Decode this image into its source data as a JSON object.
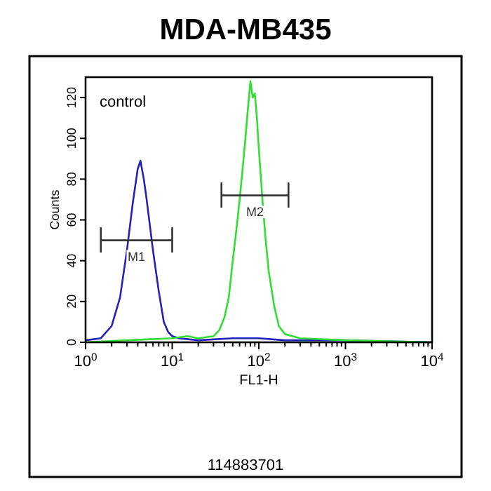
{
  "chart_data": {
    "type": "line",
    "title": "MDA-MB435",
    "xlabel": "FL1-H",
    "ylabel": "Counts",
    "log": "x",
    "grid": false,
    "marker": "none",
    "line_style": "solid",
    "xlim": [
      1,
      10000
    ],
    "ylim": [
      0,
      130
    ],
    "xticks": [
      {
        "value": 1,
        "label": "10$^{0}$"
      },
      {
        "value": 2,
        "label": null
      },
      {
        "value": 3,
        "label": null
      },
      {
        "value": 4,
        "label": null
      },
      {
        "value": 5,
        "label": null
      },
      {
        "value": 6,
        "label": null
      },
      {
        "value": 7,
        "label": null
      },
      {
        "value": 8,
        "label": null
      },
      {
        "value": 9,
        "label": null
      },
      {
        "value": 10,
        "label": "10$^{1}$"
      },
      {
        "value": 20,
        "label": null
      },
      {
        "value": 30,
        "label": null
      },
      {
        "value": 40,
        "label": null
      },
      {
        "value": 50,
        "label": null
      },
      {
        "value": 60,
        "label": null
      },
      {
        "value": 70,
        "label": null
      },
      {
        "value": 80,
        "label": null
      },
      {
        "value": 90,
        "label": null
      },
      {
        "value": 100,
        "label": "10$^{2}$"
      },
      {
        "value": 200,
        "label": null
      },
      {
        "value": 300,
        "label": null
      },
      {
        "value": 400,
        "label": null
      },
      {
        "value": 500,
        "label": null
      },
      {
        "value": 600,
        "label": null
      },
      {
        "value": 700,
        "label": null
      },
      {
        "value": 800,
        "label": null
      },
      {
        "value": 900,
        "label": null
      },
      {
        "value": 1000,
        "label": "10$^{3}$"
      },
      {
        "value": 2000,
        "label": null
      },
      {
        "value": 3000,
        "label": null
      },
      {
        "value": 4000,
        "label": null
      },
      {
        "value": 5000,
        "label": null
      },
      {
        "value": 6000,
        "label": null
      },
      {
        "value": 7000,
        "label": null
      },
      {
        "value": 8000,
        "label": null
      },
      {
        "value": 9000,
        "label": null
      },
      {
        "value": 10000,
        "label": "10$^{4}$"
      }
    ],
    "yticks": [
      0,
      20,
      40,
      60,
      80,
      100,
      120
    ],
    "series": [
      {
        "color": "#2222bb",
        "x": [
          1,
          1.5,
          2,
          2.5,
          3,
          3.5,
          4,
          4.3,
          4.7,
          5,
          5.5,
          6,
          7,
          8,
          9,
          10,
          12,
          20,
          50,
          100,
          200,
          500,
          1000,
          10000
        ],
        "values": [
          1,
          2,
          8,
          22,
          45,
          68,
          85,
          89,
          80,
          72,
          58,
          45,
          25,
          10,
          5,
          3,
          2,
          1,
          2,
          2,
          1,
          1,
          1,
          0
        ]
      },
      {
        "color": "#33dd33",
        "x": [
          1,
          3,
          10,
          15,
          20,
          30,
          35,
          40,
          45,
          50,
          55,
          60,
          65,
          70,
          75,
          80,
          85,
          90,
          95,
          100,
          110,
          120,
          130,
          150,
          170,
          200,
          300,
          1000,
          10000
        ],
        "values": [
          0,
          1,
          2,
          3,
          2,
          3,
          6,
          12,
          22,
          40,
          55,
          70,
          85,
          100,
          115,
          128,
          120,
          122,
          110,
          95,
          70,
          50,
          35,
          18,
          8,
          4,
          2,
          1,
          0
        ]
      },
      {
        "name": "M1",
        "color": "#333333",
        "x": [
          1.5,
          1.5,
          1.5,
          10,
          10,
          10
        ],
        "values": [
          44,
          56,
          50,
          50,
          56,
          44
        ]
      },
      {
        "name": "M2",
        "color": "#333333",
        "x": [
          37,
          37,
          37,
          220,
          220,
          220
        ],
        "values": [
          66,
          78,
          72,
          72,
          78,
          66
        ]
      }
    ],
    "annotations": [
      "control",
      "114883701"
    ]
  }
}
